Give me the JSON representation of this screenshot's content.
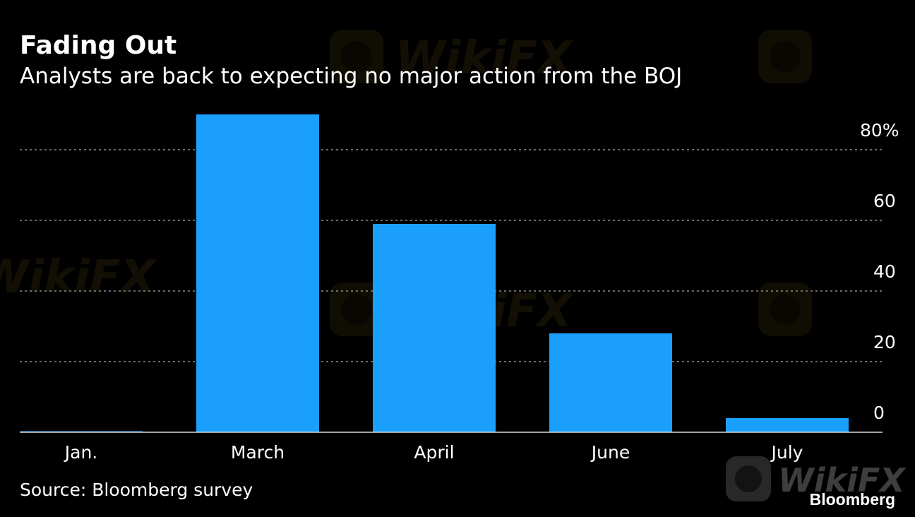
{
  "chart_data": {
    "type": "bar",
    "title": "Fading Out",
    "subtitle": "Analysts are back to expecting no major action from the BOJ",
    "categories": [
      "Jan.",
      "March",
      "April",
      "June",
      "July"
    ],
    "values": [
      0.3,
      90,
      59,
      28,
      4
    ],
    "y_ticks": [
      "0",
      "20",
      "40",
      "60",
      "80%"
    ],
    "y_tick_values": [
      0,
      20,
      40,
      60,
      80
    ],
    "ylim": [
      0,
      90
    ],
    "grid": true,
    "y_axis_side": "right",
    "source": "Source: Bloomberg survey",
    "colors": {
      "bar": "#1a9ffd",
      "background": "#000000",
      "text": "#ffffff",
      "grid": "#8a8a8a"
    }
  },
  "branding": {
    "publisher": "Bloomberg",
    "watermark": "WikiFX"
  }
}
